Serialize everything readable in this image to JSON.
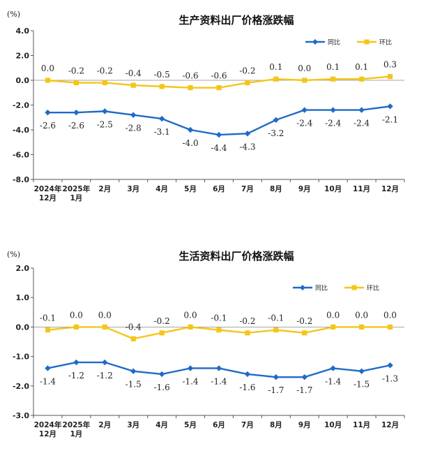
{
  "chart_data": [
    {
      "type": "line",
      "title": "生产资料出厂价格涨跌幅",
      "unit": "(%)",
      "categories": [
        "2024年|12月",
        "2025年|1月",
        "2月",
        "3月",
        "4月",
        "5月",
        "6月",
        "7月",
        "8月",
        "9月",
        "10月",
        "11月",
        "12月"
      ],
      "ylim": [
        -8.0,
        4.0
      ],
      "yticks": [
        "4.0",
        "2.0",
        "0.0",
        "-2.0",
        "-4.0",
        "-6.0",
        "-8.0"
      ],
      "ytick_values": [
        4,
        2,
        0,
        -2,
        -4,
        -6,
        -8
      ],
      "series": [
        {
          "name": "同比",
          "color": "#1f6bc7",
          "marker": "diamond",
          "label_pos": "below",
          "values": [
            -2.6,
            -2.6,
            -2.5,
            -2.8,
            -3.1,
            -4.0,
            -4.4,
            -4.3,
            -3.2,
            -2.4,
            -2.4,
            -2.4,
            -2.1
          ],
          "labels": [
            "-2.6",
            "-2.6",
            "-2.5",
            "-2.8",
            "-3.1",
            "-4.0",
            "-4.4",
            "-4.3",
            "-3.2",
            "-2.4",
            "-2.4",
            "-2.4",
            "-2.1"
          ]
        },
        {
          "name": "环比",
          "color": "#f5c518",
          "marker": "square",
          "label_pos": "above",
          "values": [
            0.0,
            -0.2,
            -0.2,
            -0.4,
            -0.5,
            -0.6,
            -0.6,
            -0.2,
            0.1,
            0.0,
            0.1,
            0.1,
            0.3
          ],
          "labels": [
            "0.0",
            "-0.2",
            "-0.2",
            "-0.4",
            "-0.5",
            "-0.6",
            "-0.6",
            "-0.2",
            "0.1",
            "0.0",
            "0.1",
            "0.1",
            "0.3"
          ]
        }
      ],
      "legend": "top-right"
    },
    {
      "type": "line",
      "title": "生活资料出厂价格涨跌幅",
      "unit": "(%)",
      "categories": [
        "2024年|12月",
        "2025年|1月",
        "2月",
        "3月",
        "4月",
        "5月",
        "6月",
        "7月",
        "8月",
        "9月",
        "10月",
        "11月",
        "12月"
      ],
      "ylim": [
        -3.0,
        2.0
      ],
      "yticks": [
        "2.0",
        "1.0",
        "0.0",
        "-1.0",
        "-2.0",
        "-3.0"
      ],
      "ytick_values": [
        2,
        1,
        0,
        -1,
        -2,
        -3
      ],
      "series": [
        {
          "name": "同比",
          "color": "#1f6bc7",
          "marker": "diamond",
          "label_pos": "below",
          "values": [
            -1.4,
            -1.2,
            -1.2,
            -1.5,
            -1.6,
            -1.4,
            -1.4,
            -1.6,
            -1.7,
            -1.7,
            -1.4,
            -1.5,
            -1.3
          ],
          "labels": [
            "-1.4",
            "-1.2",
            "-1.2",
            "-1.5",
            "-1.6",
            "-1.4",
            "-1.4",
            "-1.6",
            "-1.7",
            "-1.7",
            "-1.4",
            "-1.5",
            "-1.3"
          ]
        },
        {
          "name": "环比",
          "color": "#f5c518",
          "marker": "square",
          "label_pos": "above",
          "values": [
            -0.1,
            0.0,
            0.0,
            -0.4,
            -0.2,
            0.0,
            -0.1,
            -0.2,
            -0.1,
            -0.2,
            0.0,
            0.0,
            0.0
          ],
          "labels": [
            "-0.1",
            "0.0",
            "0.0",
            "-0.4",
            "-0.2",
            "0.0",
            "-0.1",
            "-0.2",
            "-0.1",
            "-0.2",
            "0.0",
            "0.0",
            "0.0"
          ]
        }
      ],
      "legend": "top-right"
    }
  ]
}
